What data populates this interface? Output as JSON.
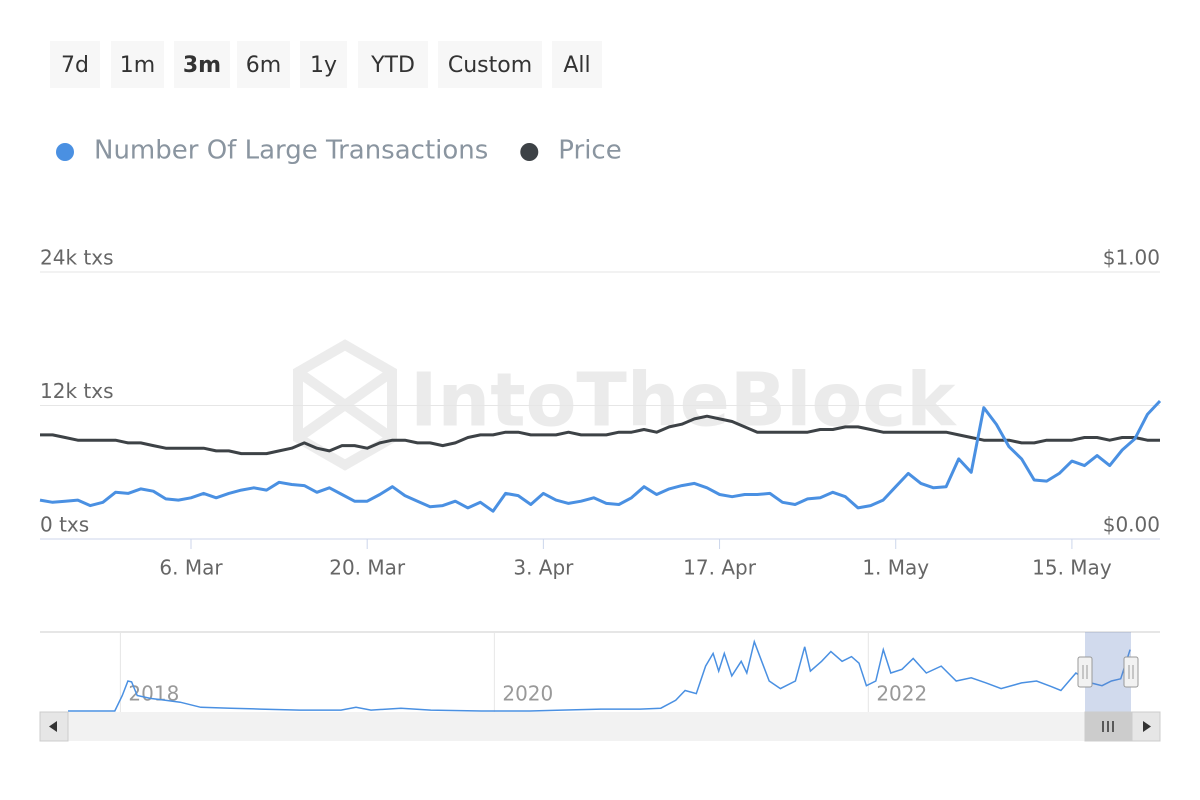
{
  "range_selector": {
    "buttons": [
      "7d",
      "1m",
      "3m",
      "6m",
      "1y",
      "YTD",
      "Custom",
      "All"
    ],
    "selected": 2
  },
  "watermark": "IntoTheBlock",
  "chart_data": {
    "type": "line",
    "categories": [
      null,
      null,
      null,
      null,
      null,
      null,
      null,
      null,
      null,
      null,
      null,
      null,
      "6. Mar",
      null,
      null,
      null,
      null,
      null,
      null,
      null,
      null,
      null,
      null,
      null,
      null,
      null,
      "20. Mar",
      null,
      null,
      null,
      null,
      null,
      null,
      null,
      null,
      null,
      null,
      null,
      null,
      null,
      "3. Apr",
      null,
      null,
      null,
      null,
      null,
      null,
      null,
      null,
      null,
      null,
      null,
      null,
      null,
      "17. Apr",
      null,
      null,
      null,
      null,
      null,
      null,
      null,
      null,
      null,
      null,
      null,
      null,
      null,
      "1. May",
      null,
      null,
      null,
      null,
      null,
      null,
      null,
      null,
      null,
      null,
      null,
      null,
      null,
      "15. May",
      null,
      null,
      null,
      null,
      null,
      null,
      null
    ],
    "series": [
      {
        "name": "Number Of Large Transactions",
        "color": "#4a90e2",
        "axis": "y",
        "values": [
          3500,
          3300,
          3400,
          3500,
          3000,
          3300,
          4200,
          4100,
          4500,
          4300,
          3600,
          3500,
          3700,
          4100,
          3700,
          4100,
          4400,
          4600,
          4400,
          5100,
          4900,
          4800,
          4200,
          4600,
          4000,
          3400,
          3400,
          4000,
          4700,
          3900,
          3400,
          2900,
          3000,
          3400,
          2800,
          3300,
          2500,
          4100,
          3900,
          3100,
          4100,
          3500,
          3200,
          3400,
          3700,
          3200,
          3100,
          3700,
          4700,
          4000,
          4500,
          4800,
          5000,
          4600,
          4000,
          3800,
          4000,
          4000,
          4100,
          3300,
          3100,
          3600,
          3700,
          4200,
          3800,
          2800,
          3000,
          3500,
          4700,
          5900,
          5000,
          4600,
          4700,
          7200,
          6000,
          11800,
          10300,
          8300,
          7200,
          5300,
          5200,
          5900,
          7000,
          6600,
          7500,
          6600,
          8000,
          9000,
          11200,
          12400
        ]
      },
      {
        "name": "Price",
        "color": "#3d4246",
        "axis": "y2",
        "values": [
          0.39,
          0.39,
          0.38,
          0.37,
          0.37,
          0.37,
          0.37,
          0.36,
          0.36,
          0.35,
          0.34,
          0.34,
          0.34,
          0.34,
          0.33,
          0.33,
          0.32,
          0.32,
          0.32,
          0.33,
          0.34,
          0.36,
          0.34,
          0.33,
          0.35,
          0.35,
          0.34,
          0.36,
          0.37,
          0.37,
          0.36,
          0.36,
          0.35,
          0.36,
          0.38,
          0.39,
          0.39,
          0.4,
          0.4,
          0.39,
          0.39,
          0.39,
          0.4,
          0.39,
          0.39,
          0.39,
          0.4,
          0.4,
          0.41,
          0.4,
          0.42,
          0.43,
          0.45,
          0.46,
          0.45,
          0.44,
          0.42,
          0.4,
          0.4,
          0.4,
          0.4,
          0.4,
          0.41,
          0.41,
          0.42,
          0.42,
          0.41,
          0.4,
          0.4,
          0.4,
          0.4,
          0.4,
          0.4,
          0.39,
          0.38,
          0.37,
          0.37,
          0.37,
          0.36,
          0.36,
          0.37,
          0.37,
          0.37,
          0.38,
          0.38,
          0.37,
          0.38,
          0.38,
          0.37,
          0.37
        ]
      }
    ],
    "ylim": [
      0,
      24000
    ],
    "yticks": [
      {
        "value": 0,
        "label": "0 txs"
      },
      {
        "value": 12000,
        "label": "12k txs"
      },
      {
        "value": 24000,
        "label": "24k txs"
      }
    ],
    "y2lim": [
      0,
      1
    ],
    "y2ticks": [
      {
        "value": 0,
        "label": "$0.00"
      },
      {
        "value": 1,
        "label": "$1.00"
      }
    ],
    "grid": true,
    "navigator": {
      "color": "#4a90e2",
      "xlim": [
        2017.57,
        2023.56
      ],
      "xticks": [
        2018,
        2020,
        2022
      ],
      "ylim": [
        0,
        24000
      ],
      "x": [
        2017.72,
        2017.97,
        2018.01,
        2018.04,
        2018.06,
        2018.09,
        2018.16,
        2018.24,
        2018.32,
        2018.43,
        2018.59,
        2018.75,
        2018.96,
        2019.18,
        2019.26,
        2019.34,
        2019.5,
        2019.66,
        2019.93,
        2020.19,
        2020.36,
        2020.57,
        2020.78,
        2020.89,
        2020.97,
        2021.02,
        2021.08,
        2021.13,
        2021.17,
        2021.2,
        2021.23,
        2021.27,
        2021.32,
        2021.35,
        2021.39,
        2021.43,
        2021.47,
        2021.53,
        2021.61,
        2021.66,
        2021.69,
        2021.75,
        2021.8,
        2021.86,
        2021.91,
        2021.95,
        2021.99,
        2022.04,
        2022.08,
        2022.12,
        2022.18,
        2022.24,
        2022.31,
        2022.39,
        2022.47,
        2022.55,
        2022.63,
        2022.71,
        2022.82,
        2022.9,
        2022.98,
        2023.03,
        2023.11,
        2023.19,
        2023.25,
        2023.3,
        2023.35,
        2023.4
      ],
      "values": [
        300,
        300,
        5200,
        9800,
        9500,
        5200,
        4300,
        3700,
        3100,
        1500,
        1200,
        900,
        600,
        600,
        1500,
        600,
        1200,
        600,
        300,
        300,
        600,
        900,
        900,
        1200,
        3700,
        6800,
        5800,
        14500,
        18500,
        12900,
        18500,
        11400,
        16000,
        12300,
        22200,
        16000,
        9800,
        7400,
        9800,
        20600,
        12900,
        16000,
        19100,
        16000,
        17500,
        15400,
        8300,
        9800,
        19700,
        12300,
        13500,
        16900,
        12300,
        14500,
        9800,
        10800,
        9200,
        7400,
        9200,
        9800,
        8000,
        6800,
        12300,
        9200,
        8300,
        9800,
        10500,
        19700
      ]
    }
  }
}
